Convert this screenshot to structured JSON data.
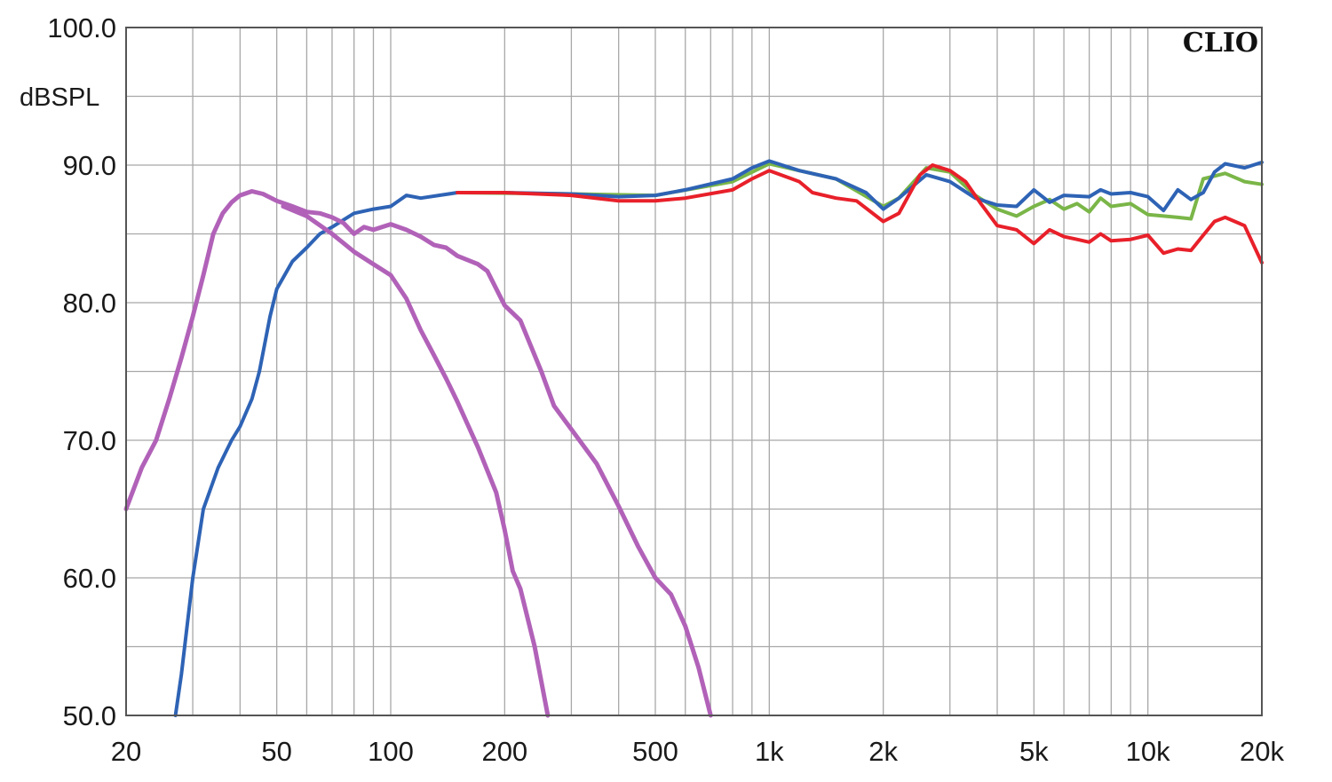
{
  "chart_data": {
    "type": "line",
    "brand": "CLIO",
    "ylabel": "dBSPL",
    "xscale": "log",
    "xlim": [
      20,
      20000
    ],
    "ylim": [
      50,
      100
    ],
    "grid": true,
    "y_ticks": [
      {
        "value": 100,
        "label": "100.0"
      },
      {
        "value": 90,
        "label": "90.0"
      },
      {
        "value": 80,
        "label": "80.0"
      },
      {
        "value": 70,
        "label": "70.0"
      },
      {
        "value": 60,
        "label": "60.0"
      },
      {
        "value": 50,
        "label": "50.0"
      }
    ],
    "y_minor": [
      95,
      85,
      75,
      65,
      55
    ],
    "x_ticks": [
      {
        "value": 20,
        "label": "20"
      },
      {
        "value": 50,
        "label": "50"
      },
      {
        "value": 100,
        "label": "100"
      },
      {
        "value": 200,
        "label": "200"
      },
      {
        "value": 500,
        "label": "500"
      },
      {
        "value": 1000,
        "label": "1k"
      },
      {
        "value": 2000,
        "label": "2k"
      },
      {
        "value": 5000,
        "label": "5k"
      },
      {
        "value": 10000,
        "label": "10k"
      },
      {
        "value": 20000,
        "label": "20k"
      }
    ],
    "x_grid": [
      20,
      30,
      40,
      50,
      60,
      70,
      80,
      90,
      100,
      200,
      300,
      400,
      500,
      600,
      700,
      800,
      900,
      1000,
      2000,
      3000,
      4000,
      5000,
      6000,
      7000,
      8000,
      9000,
      10000,
      20000
    ],
    "series": [
      {
        "color": "#7ab648",
        "width": 4,
        "points": [
          [
            150,
            88.0
          ],
          [
            300,
            87.9
          ],
          [
            500,
            87.8
          ],
          [
            800,
            88.8
          ],
          [
            1000,
            90.1
          ],
          [
            1500,
            89.0
          ],
          [
            2000,
            87.0
          ],
          [
            2200,
            87.6
          ],
          [
            2600,
            89.8
          ],
          [
            3000,
            89.5
          ],
          [
            3500,
            87.8
          ],
          [
            4000,
            86.8
          ],
          [
            4500,
            86.3
          ],
          [
            5000,
            87.0
          ],
          [
            5500,
            87.5
          ],
          [
            6000,
            86.8
          ],
          [
            6500,
            87.2
          ],
          [
            7000,
            86.6
          ],
          [
            7500,
            87.6
          ],
          [
            8000,
            87.0
          ],
          [
            9000,
            87.2
          ],
          [
            10000,
            86.4
          ],
          [
            11000,
            86.3
          ],
          [
            12000,
            86.2
          ],
          [
            13000,
            86.1
          ],
          [
            14000,
            89.0
          ],
          [
            16000,
            89.4
          ],
          [
            18000,
            88.8
          ],
          [
            20000,
            88.6
          ]
        ]
      },
      {
        "color": "#2e63b5",
        "width": 4,
        "points": [
          [
            27,
            50
          ],
          [
            28,
            53
          ],
          [
            30,
            60
          ],
          [
            32,
            65
          ],
          [
            35,
            68
          ],
          [
            38,
            70
          ],
          [
            40,
            71
          ],
          [
            43,
            73
          ],
          [
            45,
            75
          ],
          [
            48,
            79
          ],
          [
            50,
            81
          ],
          [
            55,
            83
          ],
          [
            60,
            84
          ],
          [
            65,
            85
          ],
          [
            70,
            85.5
          ],
          [
            80,
            86.5
          ],
          [
            90,
            86.8
          ],
          [
            100,
            87
          ],
          [
            110,
            87.8
          ],
          [
            120,
            87.6
          ],
          [
            150,
            88
          ],
          [
            200,
            88
          ],
          [
            300,
            87.9
          ],
          [
            400,
            87.7
          ],
          [
            500,
            87.8
          ],
          [
            600,
            88.2
          ],
          [
            800,
            89
          ],
          [
            900,
            89.8
          ],
          [
            1000,
            90.3
          ],
          [
            1200,
            89.6
          ],
          [
            1500,
            89.0
          ],
          [
            1800,
            88.0
          ],
          [
            2000,
            86.8
          ],
          [
            2200,
            87.6
          ],
          [
            2600,
            89.3
          ],
          [
            3000,
            88.8
          ],
          [
            3500,
            87.6
          ],
          [
            4000,
            87.1
          ],
          [
            4500,
            87.0
          ],
          [
            5000,
            88.2
          ],
          [
            5500,
            87.3
          ],
          [
            6000,
            87.8
          ],
          [
            7000,
            87.7
          ],
          [
            7500,
            88.2
          ],
          [
            8000,
            87.9
          ],
          [
            9000,
            88.0
          ],
          [
            10000,
            87.7
          ],
          [
            11000,
            86.7
          ],
          [
            12000,
            88.2
          ],
          [
            13000,
            87.5
          ],
          [
            14000,
            88.0
          ],
          [
            15000,
            89.5
          ],
          [
            16000,
            90.1
          ],
          [
            18000,
            89.8
          ],
          [
            20000,
            90.2
          ]
        ]
      },
      {
        "color": "#e8202a",
        "width": 4,
        "points": [
          [
            150,
            88.0
          ],
          [
            200,
            88.0
          ],
          [
            300,
            87.8
          ],
          [
            400,
            87.4
          ],
          [
            500,
            87.4
          ],
          [
            600,
            87.6
          ],
          [
            800,
            88.2
          ],
          [
            900,
            89
          ],
          [
            1000,
            89.6
          ],
          [
            1200,
            88.8
          ],
          [
            1300,
            88.0
          ],
          [
            1500,
            87.6
          ],
          [
            1700,
            87.4
          ],
          [
            2000,
            85.9
          ],
          [
            2200,
            86.5
          ],
          [
            2500,
            89.3
          ],
          [
            2700,
            90.0
          ],
          [
            3000,
            89.6
          ],
          [
            3300,
            88.8
          ],
          [
            3600,
            87.3
          ],
          [
            4000,
            85.6
          ],
          [
            4500,
            85.3
          ],
          [
            5000,
            84.3
          ],
          [
            5500,
            85.3
          ],
          [
            6000,
            84.8
          ],
          [
            6500,
            84.6
          ],
          [
            7000,
            84.4
          ],
          [
            7500,
            85.0
          ],
          [
            8000,
            84.5
          ],
          [
            9000,
            84.6
          ],
          [
            10000,
            84.9
          ],
          [
            11000,
            83.6
          ],
          [
            12000,
            83.9
          ],
          [
            13000,
            83.8
          ],
          [
            14000,
            84.9
          ],
          [
            15000,
            85.9
          ],
          [
            16000,
            86.2
          ],
          [
            18000,
            85.6
          ],
          [
            20000,
            82.9
          ]
        ]
      },
      {
        "color": "#b162b8",
        "width": 5,
        "points": [
          [
            20,
            65
          ],
          [
            22,
            68
          ],
          [
            24,
            70
          ],
          [
            26,
            73
          ],
          [
            28,
            76
          ],
          [
            30,
            79
          ],
          [
            32,
            82
          ],
          [
            34,
            85
          ],
          [
            36,
            86.5
          ],
          [
            38,
            87.3
          ],
          [
            40,
            87.8
          ],
          [
            43,
            88.1
          ],
          [
            46,
            87.9
          ],
          [
            50,
            87.4
          ],
          [
            55,
            87.0
          ],
          [
            60,
            86.6
          ],
          [
            65,
            86.5
          ],
          [
            70,
            86.2
          ],
          [
            75,
            85.8
          ],
          [
            80,
            85.0
          ],
          [
            85,
            85.5
          ],
          [
            90,
            85.3
          ],
          [
            100,
            85.7
          ],
          [
            110,
            85.3
          ],
          [
            120,
            84.8
          ],
          [
            130,
            84.2
          ],
          [
            140,
            84.0
          ],
          [
            150,
            83.4
          ],
          [
            170,
            82.8
          ],
          [
            180,
            82.3
          ],
          [
            200,
            79.8
          ],
          [
            220,
            78.7
          ],
          [
            250,
            75.0
          ],
          [
            270,
            72.5
          ],
          [
            300,
            70.8
          ],
          [
            350,
            68.3
          ],
          [
            400,
            65.2
          ],
          [
            450,
            62.3
          ],
          [
            500,
            60.0
          ],
          [
            550,
            58.8
          ],
          [
            600,
            56.5
          ],
          [
            650,
            53.5
          ],
          [
            700,
            50
          ]
        ]
      },
      {
        "color": "#b162b8",
        "width": 5,
        "points": [
          [
            52,
            87.0
          ],
          [
            60,
            86.3
          ],
          [
            70,
            85.0
          ],
          [
            80,
            83.7
          ],
          [
            90,
            82.8
          ],
          [
            100,
            82.0
          ],
          [
            110,
            80.3
          ],
          [
            120,
            78.0
          ],
          [
            130,
            76.2
          ],
          [
            140,
            74.5
          ],
          [
            150,
            72.8
          ],
          [
            170,
            69.5
          ],
          [
            190,
            66.2
          ],
          [
            200,
            63.5
          ],
          [
            210,
            60.5
          ],
          [
            220,
            59.2
          ],
          [
            240,
            55.0
          ],
          [
            260,
            50
          ]
        ]
      }
    ]
  }
}
